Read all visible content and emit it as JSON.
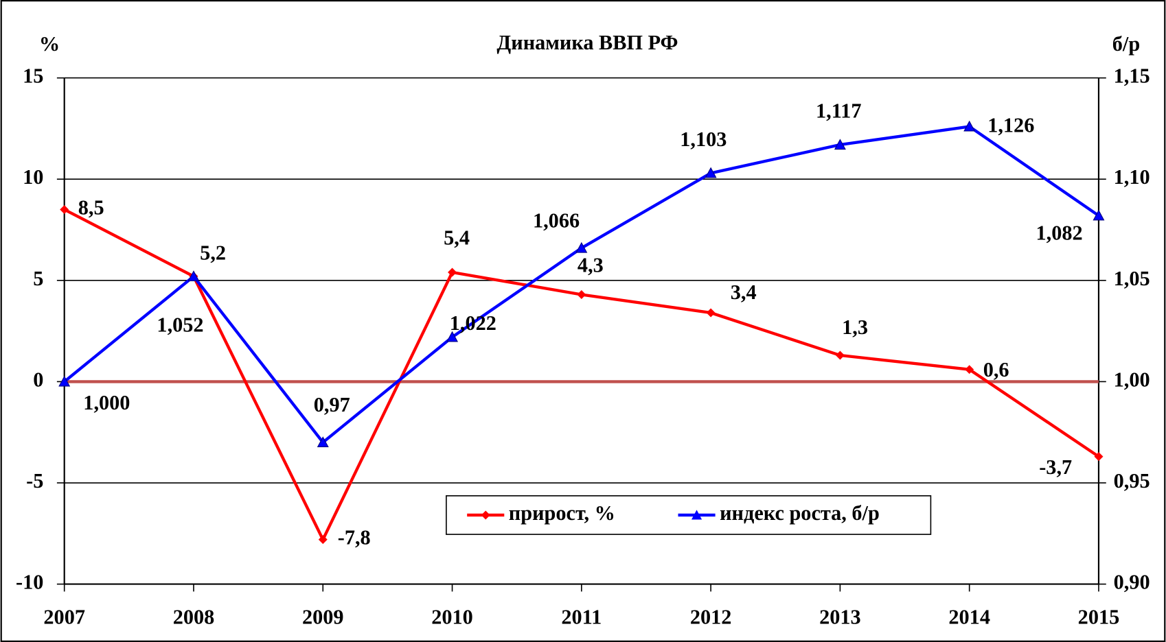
{
  "chart_data": {
    "type": "line",
    "title": "Динамика ВВП РФ",
    "y_label": "%",
    "y2_label": "б/р",
    "categories": [
      "2007",
      "2008",
      "2009",
      "2010",
      "2011",
      "2012",
      "2013",
      "2014",
      "2015"
    ],
    "series": [
      {
        "name": "прирост, %",
        "color": "#ff0000",
        "axis": "y",
        "values": [
          8.5,
          5.2,
          -7.8,
          5.4,
          4.3,
          3.4,
          1.3,
          0.6,
          -3.7
        ],
        "value_labels": [
          "8,5",
          "5,2",
          "-7,8",
          "5,4",
          "4,3",
          "3,4",
          "1,3",
          "0,6",
          "-3,7"
        ]
      },
      {
        "name": "индекс роста, б/р",
        "color": "#0000ff",
        "axis": "y2",
        "values": [
          1.0,
          1.052,
          0.97,
          1.022,
          1.066,
          1.103,
          1.117,
          1.126,
          1.082
        ],
        "value_labels": [
          "1,000",
          "1,052",
          "0,97",
          "1,022",
          "1,066",
          "1,103",
          "1,117",
          "1,126",
          "1,082"
        ]
      }
    ],
    "ylim": [
      -10,
      15
    ],
    "yticks": [
      -10,
      -5,
      0,
      5,
      10,
      15
    ],
    "y2lim": [
      0.9,
      1.15
    ],
    "y2ticks": [
      {
        "value": 0.9,
        "label": "0,90"
      },
      {
        "value": 0.95,
        "label": "0,95"
      },
      {
        "value": 1.0,
        "label": "1,00"
      },
      {
        "value": 1.05,
        "label": "1,05"
      },
      {
        "value": 1.1,
        "label": "1,10"
      },
      {
        "value": 1.15,
        "label": "1,15"
      }
    ],
    "grid": true,
    "zero_line_color": "#c0504d",
    "legend": "bottom"
  }
}
